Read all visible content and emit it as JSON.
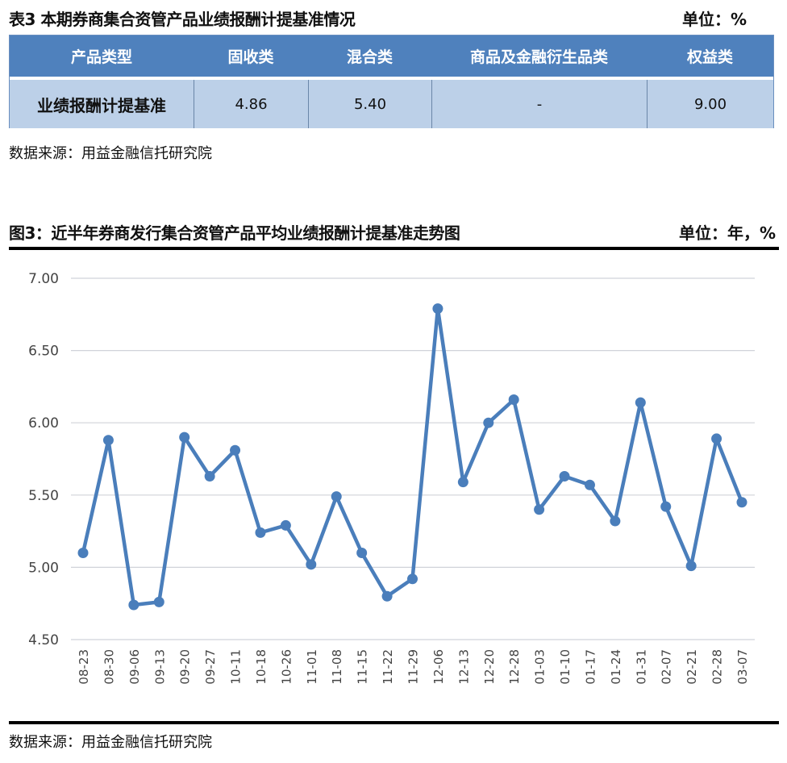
{
  "table3": {
    "title": "表3 本期券商集合资管产品业绩报酬计提基准情况",
    "unit": "单位：%",
    "headers": [
      "产品类型",
      "固收类",
      "混合类",
      "商品及金融衍生品类",
      "权益类"
    ],
    "row": [
      "业绩报酬计提基准",
      "4.86",
      "5.40",
      "-",
      "9.00"
    ],
    "source": "数据来源：用益金融信托研究院"
  },
  "figure3": {
    "title": "图3：近半年券商发行集合资管产品平均业绩报酬计提基准走势图",
    "unit": "单位：年，%",
    "source": "数据来源：用益金融信托研究院"
  },
  "colors": {
    "header_blue": "#4f81bd",
    "body_blue": "#bcd0e8",
    "line": "#4a7ebb",
    "grid": "#d0d3d9"
  },
  "chart_data": {
    "type": "line",
    "title": "近半年券商发行集合资管产品平均业绩报酬计提基准走势图",
    "xlabel": "",
    "ylabel": "",
    "ylim": [
      4.5,
      7.0
    ],
    "yticks": [
      "4.50",
      "5.00",
      "5.50",
      "6.00",
      "6.50",
      "7.00"
    ],
    "grid": true,
    "legend": "none",
    "categories": [
      "08-23",
      "08-30",
      "09-06",
      "09-13",
      "09-20",
      "09-27",
      "10-11",
      "10-18",
      "10-26",
      "11-01",
      "11-08",
      "11-15",
      "11-22",
      "11-29",
      "12-06",
      "12-13",
      "12-20",
      "12-28",
      "01-03",
      "01-10",
      "01-17",
      "01-24",
      "01-31",
      "02-07",
      "02-21",
      "02-28",
      "03-07"
    ],
    "series": [
      {
        "name": "平均业绩报酬计提基准",
        "values": [
          5.1,
          5.88,
          4.74,
          4.76,
          5.9,
          5.63,
          5.81,
          5.24,
          5.29,
          5.02,
          5.49,
          5.1,
          4.8,
          4.92,
          6.79,
          5.59,
          6.0,
          6.16,
          5.4,
          5.63,
          5.57,
          5.32,
          6.14,
          5.42,
          5.01,
          5.89,
          5.45
        ]
      }
    ]
  }
}
